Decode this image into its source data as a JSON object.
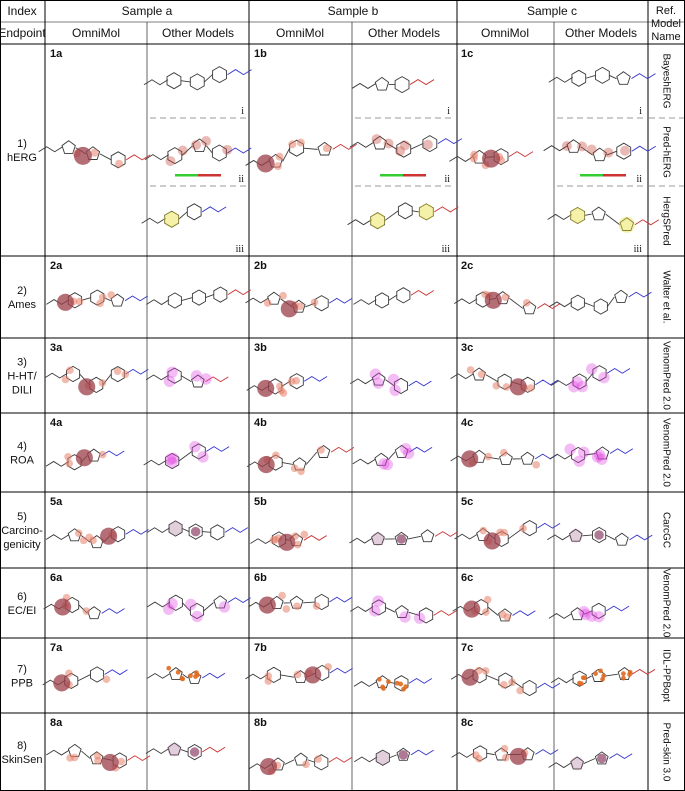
{
  "header": {
    "index": "Index",
    "endpoint": "Endpoint",
    "sample_a": "Sample a",
    "sample_b": "Sample b",
    "sample_c": "Sample c",
    "omnimol": "OmniMol",
    "other_models": "Other Models",
    "ref_line1": "Ref.",
    "ref_line2": "Model",
    "ref_line3": "Name"
  },
  "rows": [
    {
      "line1": "1)",
      "line2": "hERG",
      "line3": "",
      "ids": [
        "1a",
        "1b",
        "1c"
      ],
      "refs": [
        "BayeshERG",
        "Pred-hERG",
        "HergSPred"
      ]
    },
    {
      "line1": "2)",
      "line2": "Ames",
      "line3": "",
      "ids": [
        "2a",
        "2b",
        "2c"
      ],
      "refs": [
        "Walter et al."
      ]
    },
    {
      "line1": "3)",
      "line2": "H-HT/",
      "line3": "DILI",
      "ids": [
        "3a",
        "3b",
        "3c"
      ],
      "refs": [
        "VenomPred 2.0"
      ]
    },
    {
      "line1": "4)",
      "line2": "ROA",
      "line3": "",
      "ids": [
        "4a",
        "4b",
        "4c"
      ],
      "refs": [
        "VenomPred 2.0"
      ]
    },
    {
      "line1": "5)",
      "line2": "Carcino-",
      "line3": "genicity",
      "ids": [
        "5a",
        "5b",
        "5c"
      ],
      "refs": [
        "CarcGC"
      ]
    },
    {
      "line1": "6)",
      "line2": "EC/EI",
      "line3": "",
      "ids": [
        "6a",
        "6b",
        "6c"
      ],
      "refs": [
        "VenomPred 2.0"
      ]
    },
    {
      "line1": "7)",
      "line2": "PPB",
      "line3": "",
      "ids": [
        "7a",
        "7b",
        "7c"
      ],
      "refs": [
        "IDL-PPBopt"
      ]
    },
    {
      "line1": "8)",
      "line2": "SkinSen",
      "line3": "",
      "ids": [
        "8a",
        "8b",
        "8c"
      ],
      "refs": [
        "Pred-skin 3.0"
      ]
    }
  ],
  "subpanel_marks": [
    "i",
    "ii",
    "iii"
  ],
  "colors": {
    "omnimol_highlight": "#e8806a",
    "omnimol_dark": "#9b3d48",
    "other_magenta": "#e040e0",
    "other_red": "#c0392b",
    "herg_yellow": "#e8e040",
    "ppb_orange": "#e06a20"
  }
}
